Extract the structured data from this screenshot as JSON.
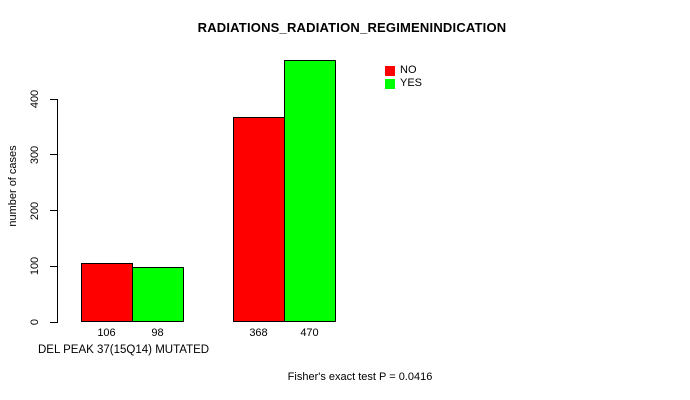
{
  "chart_data": {
    "type": "bar",
    "title": "RADIATIONS_RADIATION_REGIMENINDICATION",
    "xlabel": "DEL PEAK 37(15Q14) MUTATED",
    "ylabel": "number of cases",
    "categories": [
      "",
      ""
    ],
    "series": [
      {
        "name": "NO",
        "color": "#ff0000",
        "values": [
          106,
          368
        ]
      },
      {
        "name": "YES",
        "color": "#00ff00",
        "values": [
          98,
          470
        ]
      }
    ],
    "bar_value_labels": [
      [
        106,
        98
      ],
      [
        368,
        470
      ]
    ],
    "yticks": [
      0,
      100,
      200,
      300,
      400
    ],
    "ylim": [
      0,
      470
    ],
    "grid": false,
    "legend_position": "top-right",
    "annotation": "Fisher's exact test P = 0.0416",
    "bar_border_color": "#000000"
  }
}
